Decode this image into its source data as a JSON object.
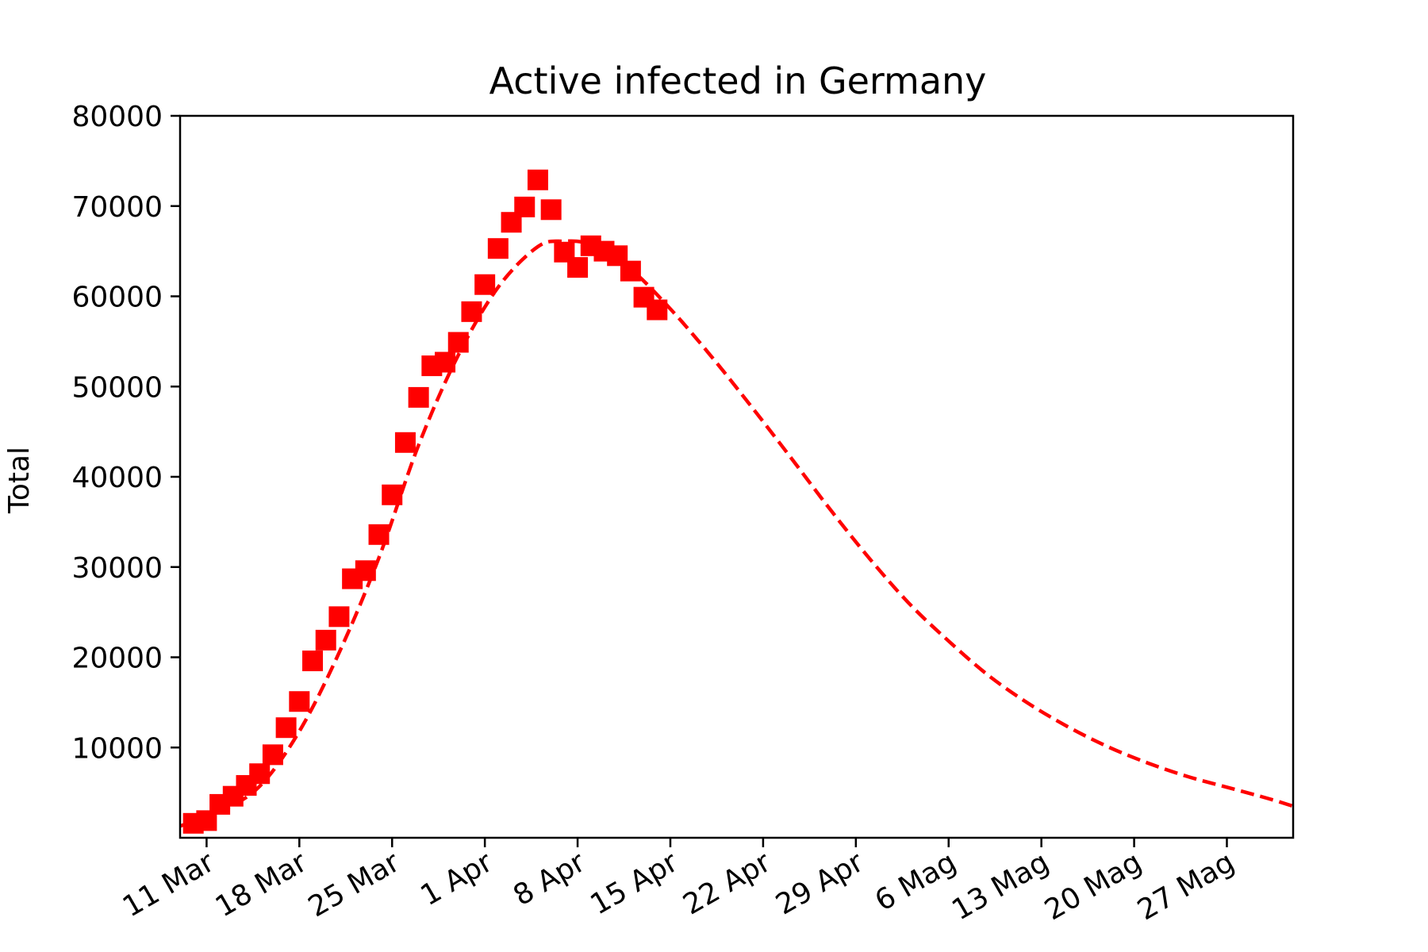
{
  "chart_data": {
    "type": "scatter",
    "title": "Active infected in Germany",
    "xlabel": "",
    "ylabel": "Total",
    "xlim": [
      "2020-03-09",
      "2020-06-01"
    ],
    "ylim": [
      0,
      80000
    ],
    "grid": false,
    "y_ticks": [
      10000,
      20000,
      30000,
      40000,
      50000,
      60000,
      70000,
      80000
    ],
    "x_ticks": [
      {
        "date": "2020-03-11",
        "label": "11 Mar"
      },
      {
        "date": "2020-03-18",
        "label": "18 Mar"
      },
      {
        "date": "2020-03-25",
        "label": "25 Mar"
      },
      {
        "date": "2020-04-01",
        "label": "1 Apr"
      },
      {
        "date": "2020-04-08",
        "label": "8 Apr"
      },
      {
        "date": "2020-04-15",
        "label": "15 Apr"
      },
      {
        "date": "2020-04-22",
        "label": "22 Apr"
      },
      {
        "date": "2020-04-29",
        "label": "29 Apr"
      },
      {
        "date": "2020-05-06",
        "label": "6 Mag"
      },
      {
        "date": "2020-05-13",
        "label": "13 Mag"
      },
      {
        "date": "2020-05-20",
        "label": "20 Mag"
      },
      {
        "date": "2020-05-27",
        "label": "27 Mag"
      }
    ],
    "series": [
      {
        "kind": "scatter",
        "marker": "square",
        "color": "#ff0000",
        "points": [
          {
            "x": "2020-03-10",
            "y": 1600
          },
          {
            "x": "2020-03-11",
            "y": 1900
          },
          {
            "x": "2020-03-12",
            "y": 3700
          },
          {
            "x": "2020-03-13",
            "y": 4600
          },
          {
            "x": "2020-03-14",
            "y": 5800
          },
          {
            "x": "2020-03-15",
            "y": 7100
          },
          {
            "x": "2020-03-16",
            "y": 9200
          },
          {
            "x": "2020-03-17",
            "y": 12200
          },
          {
            "x": "2020-03-18",
            "y": 15100
          },
          {
            "x": "2020-03-19",
            "y": 19600
          },
          {
            "x": "2020-03-20",
            "y": 21900
          },
          {
            "x": "2020-03-21",
            "y": 24500
          },
          {
            "x": "2020-03-22",
            "y": 28700
          },
          {
            "x": "2020-03-23",
            "y": 29600
          },
          {
            "x": "2020-03-24",
            "y": 33600
          },
          {
            "x": "2020-03-25",
            "y": 38000
          },
          {
            "x": "2020-03-26",
            "y": 43800
          },
          {
            "x": "2020-03-27",
            "y": 48800
          },
          {
            "x": "2020-03-28",
            "y": 52300
          },
          {
            "x": "2020-03-29",
            "y": 52700
          },
          {
            "x": "2020-03-30",
            "y": 54900
          },
          {
            "x": "2020-03-31",
            "y": 58300
          },
          {
            "x": "2020-04-01",
            "y": 61300
          },
          {
            "x": "2020-04-02",
            "y": 65300
          },
          {
            "x": "2020-04-03",
            "y": 68200
          },
          {
            "x": "2020-04-04",
            "y": 69900
          },
          {
            "x": "2020-04-05",
            "y": 72900
          },
          {
            "x": "2020-04-06",
            "y": 69600
          },
          {
            "x": "2020-04-07",
            "y": 64900
          },
          {
            "x": "2020-04-08",
            "y": 63200
          },
          {
            "x": "2020-04-09",
            "y": 65600
          },
          {
            "x": "2020-04-10",
            "y": 65000
          },
          {
            "x": "2020-04-11",
            "y": 64500
          },
          {
            "x": "2020-04-12",
            "y": 62800
          },
          {
            "x": "2020-04-13",
            "y": 59900
          },
          {
            "x": "2020-04-14",
            "y": 58500
          }
        ]
      },
      {
        "kind": "line",
        "style": "dashed",
        "color": "#ff0000",
        "points": [
          {
            "x": "2020-03-09",
            "y": 1300
          },
          {
            "x": "2020-03-12",
            "y": 2900
          },
          {
            "x": "2020-03-15",
            "y": 5700
          },
          {
            "x": "2020-03-18",
            "y": 11800
          },
          {
            "x": "2020-03-21",
            "y": 20500
          },
          {
            "x": "2020-03-24",
            "y": 31000
          },
          {
            "x": "2020-03-27",
            "y": 43500
          },
          {
            "x": "2020-03-30",
            "y": 53500
          },
          {
            "x": "2020-04-02",
            "y": 61000
          },
          {
            "x": "2020-04-05",
            "y": 65500
          },
          {
            "x": "2020-04-07",
            "y": 66100
          },
          {
            "x": "2020-04-09",
            "y": 65700
          },
          {
            "x": "2020-04-12",
            "y": 63000
          },
          {
            "x": "2020-04-15",
            "y": 58600
          },
          {
            "x": "2020-04-18",
            "y": 53500
          },
          {
            "x": "2020-04-21",
            "y": 48000
          },
          {
            "x": "2020-04-24",
            "y": 42300
          },
          {
            "x": "2020-04-27",
            "y": 36500
          },
          {
            "x": "2020-04-30",
            "y": 31000
          },
          {
            "x": "2020-05-03",
            "y": 26000
          },
          {
            "x": "2020-05-06",
            "y": 21800
          },
          {
            "x": "2020-05-09",
            "y": 18000
          },
          {
            "x": "2020-05-12",
            "y": 14900
          },
          {
            "x": "2020-05-15",
            "y": 12300
          },
          {
            "x": "2020-05-18",
            "y": 10100
          },
          {
            "x": "2020-05-21",
            "y": 8300
          },
          {
            "x": "2020-05-24",
            "y": 6800
          },
          {
            "x": "2020-05-27",
            "y": 5600
          },
          {
            "x": "2020-05-30",
            "y": 4400
          },
          {
            "x": "2020-06-01",
            "y": 3500
          }
        ]
      }
    ]
  }
}
